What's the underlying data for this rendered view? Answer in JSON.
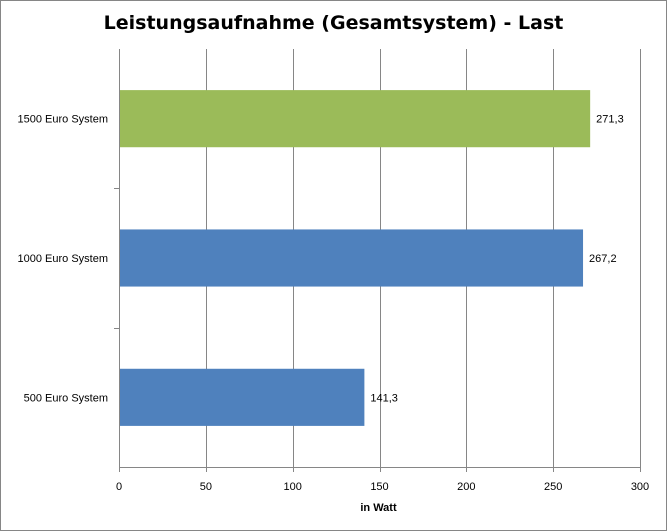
{
  "chart_data": {
    "type": "bar",
    "orientation": "horizontal",
    "title": "Leistungsaufnahme (Gesamtsystem) - Last",
    "xlabel": "in Watt",
    "ylabel": "",
    "categories": [
      "1500 Euro System",
      "1000 Euro System",
      "500 Euro System"
    ],
    "values": [
      271.3,
      267.2,
      141.3
    ],
    "value_labels": [
      "271,3",
      "267,2",
      "141,3"
    ],
    "bar_colors": [
      "#9BBB59",
      "#4F81BD",
      "#4F81BD"
    ],
    "xlim": [
      0,
      300
    ],
    "xticks": [
      0,
      50,
      100,
      150,
      200,
      250,
      300
    ],
    "grid": true,
    "legend": "none"
  }
}
